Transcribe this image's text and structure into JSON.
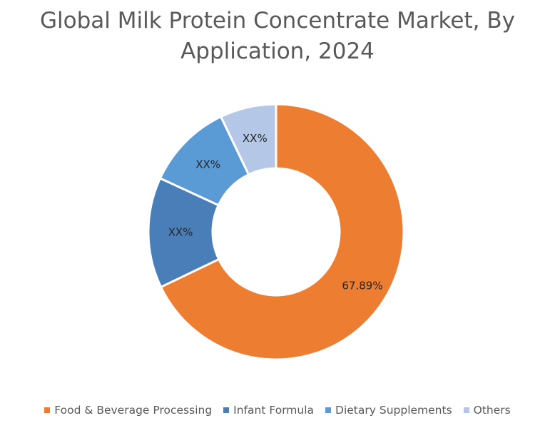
{
  "chart_data": {
    "type": "pie",
    "style": "donut",
    "title": "Global Milk Protein Concentrate Market, By Application, 2024",
    "title_lines": [
      "Global Milk Protein Concentrate Market, By",
      "Application, 2024"
    ],
    "categories": [
      "Food & Beverage Processing",
      "Infant Formula",
      "Dietary Supplements",
      "Others"
    ],
    "values": [
      67.89,
      14.0,
      11.0,
      7.11
    ],
    "data_labels": [
      "67.89%",
      "XX%",
      "XX%",
      "XX%"
    ],
    "colors": [
      "#ED7D31",
      "#4A7EB8",
      "#5B9BD5",
      "#B4C7E7"
    ],
    "legend_position": "bottom"
  }
}
